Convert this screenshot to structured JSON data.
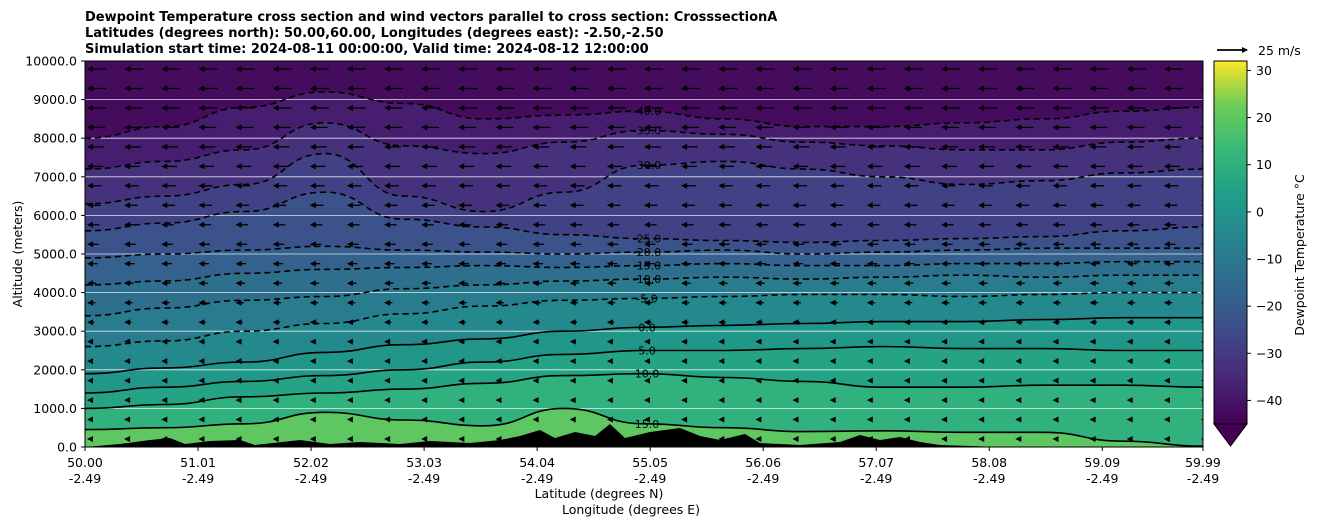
{
  "chart_data": {
    "type": "contour",
    "title_lines": [
      "Dewpoint Temperature cross section and wind vectors parallel to cross section: CrosssectionA",
      "Latitudes (degrees north): 50.00,60.00, Longitudes (degrees east): -2.50,-2.50",
      "Simulation start time: 2024-08-11 00:00:00, Valid time: 2024-08-12 12:00:00"
    ],
    "ylabel": "Altitude (meters)",
    "xlabel_lat": "Latitude (degrees N)",
    "xlabel_lon": "Longitude (degrees E)",
    "ylim": [
      0,
      10000
    ],
    "y_ticks": [
      "0.0",
      "1000.0",
      "2000.0",
      "3000.0",
      "4000.0",
      "5000.0",
      "6000.0",
      "7000.0",
      "8000.0",
      "9000.0",
      "10000.0"
    ],
    "x_ticks": [
      {
        "lat": "50.00",
        "lon": "-2.49"
      },
      {
        "lat": "51.01",
        "lon": "-2.49"
      },
      {
        "lat": "52.02",
        "lon": "-2.49"
      },
      {
        "lat": "53.03",
        "lon": "-2.49"
      },
      {
        "lat": "54.04",
        "lon": "-2.49"
      },
      {
        "lat": "55.05",
        "lon": "-2.49"
      },
      {
        "lat": "56.06",
        "lon": "-2.49"
      },
      {
        "lat": "57.07",
        "lon": "-2.49"
      },
      {
        "lat": "58.08",
        "lon": "-2.49"
      },
      {
        "lat": "59.09",
        "lon": "-2.49"
      },
      {
        "lat": "59.99",
        "lon": "-2.49"
      }
    ],
    "xlim_lat": [
      50.0,
      59.99
    ],
    "grid": "horizontal",
    "colorbar": {
      "label": "Dewpoint Temperature °C",
      "range": [
        -45,
        32
      ],
      "ticks": [
        "30",
        "20",
        "10",
        "0",
        "−10",
        "−20",
        "−30",
        "−40"
      ],
      "colormap": "viridis",
      "extend": "min"
    },
    "wind_key": {
      "label": "25 m/s"
    },
    "contour_lines": [
      {
        "level": 15.0,
        "label": "15.0",
        "style": "solid",
        "alt_profile": [
          450,
          500,
          600,
          900,
          700,
          550,
          1000,
          600,
          500,
          400,
          420,
          380,
          380,
          150,
          20
        ]
      },
      {
        "level": 10.0,
        "label": "10.0",
        "style": "solid",
        "alt_profile": [
          1000,
          1100,
          1300,
          1400,
          1500,
          1650,
          1850,
          1900,
          1800,
          1700,
          1550,
          1550,
          1600,
          1600,
          1550
        ]
      },
      {
        "level": 5.0,
        "label": "5.0",
        "style": "solid",
        "alt_profile": [
          1400,
          1550,
          1700,
          1850,
          2000,
          2200,
          2400,
          2500,
          2500,
          2550,
          2600,
          2550,
          2550,
          2500,
          2500
        ]
      },
      {
        "level": 0.0,
        "label": "0.0",
        "style": "solid",
        "alt_profile": [
          1900,
          2050,
          2200,
          2450,
          2650,
          2800,
          3000,
          3100,
          3150,
          3200,
          3250,
          3250,
          3300,
          3350,
          3350
        ]
      },
      {
        "level": -5.0,
        "label": "-5.0",
        "style": "dashed",
        "alt_profile": [
          2600,
          2750,
          3000,
          3200,
          3450,
          3650,
          3800,
          3850,
          3900,
          3950,
          3950,
          3900,
          3950,
          4000,
          4000
        ]
      },
      {
        "level": -10.0,
        "label": "-10.0",
        "style": "dashed",
        "alt_profile": [
          3400,
          3600,
          3800,
          3900,
          4100,
          4200,
          4300,
          4350,
          4400,
          4350,
          4400,
          4450,
          4400,
          4450,
          4450
        ]
      },
      {
        "level": -15.0,
        "label": "-15.0",
        "style": "dashed",
        "alt_profile": [
          4200,
          4300,
          4500,
          4600,
          4650,
          4700,
          4650,
          4700,
          4750,
          4700,
          4700,
          4750,
          4750,
          4800,
          4800
        ]
      },
      {
        "level": -20.0,
        "label": "-20.0",
        "style": "dashed",
        "alt_profile": [
          4900,
          5000,
          5100,
          5200,
          5100,
          5050,
          5000,
          5050,
          5100,
          5000,
          5050,
          5100,
          5150,
          5150,
          5150
        ]
      },
      {
        "level": -25.0,
        "label": "-25.0",
        "style": "dashed",
        "alt_profile": [
          5600,
          5800,
          6100,
          6600,
          5900,
          5700,
          5500,
          5400,
          5350,
          5300,
          5350,
          5400,
          5450,
          5600,
          5700
        ]
      },
      {
        "level": -30.0,
        "label": "-30.0",
        "style": "dashed",
        "alt_profile": [
          6300,
          6500,
          6800,
          7600,
          6500,
          6100,
          6600,
          7300,
          7400,
          7200,
          7000,
          6800,
          6900,
          7100,
          7200
        ]
      },
      {
        "level": -35.0,
        "label": "-35.0",
        "style": "dashed",
        "alt_profile": [
          7200,
          7400,
          7700,
          8400,
          7800,
          7600,
          7900,
          8200,
          8100,
          7900,
          7800,
          7700,
          7700,
          7900,
          8000
        ]
      },
      {
        "level": -40.0,
        "label": "-40.0",
        "style": "dashed",
        "alt_profile": [
          8000,
          8300,
          8800,
          9200,
          8900,
          8500,
          8600,
          8700,
          8500,
          8300,
          8300,
          8400,
          8500,
          8700,
          8800
        ]
      }
    ],
    "terrain_present": true
  }
}
